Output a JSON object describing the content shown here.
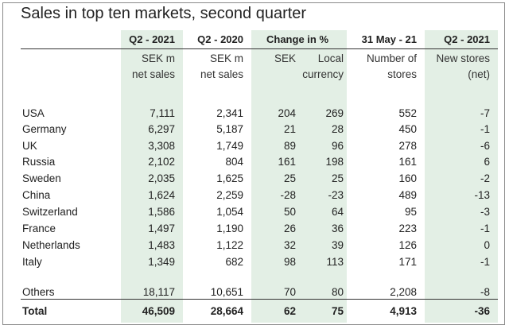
{
  "title": "Sales in top ten markets, second quarter",
  "col_headers": [
    "Q2 - 2021",
    "Q2 - 2020",
    "Change in %",
    "31 May - 21",
    "Q2 - 2021"
  ],
  "sub_headers": {
    "line1": [
      "SEK m",
      "SEK m",
      "SEK",
      "Local",
      "Number of",
      "New stores"
    ],
    "line2": [
      "net sales",
      "net sales",
      "",
      "currency",
      "stores",
      "(net)"
    ]
  },
  "rows": [
    {
      "market": "USA",
      "cells": [
        "7,111",
        "2,341",
        "204",
        "269",
        "552",
        "-7"
      ]
    },
    {
      "market": "Germany",
      "cells": [
        "6,297",
        "5,187",
        "21",
        "28",
        "450",
        "-1"
      ]
    },
    {
      "market": "UK",
      "cells": [
        "3,308",
        "1,749",
        "89",
        "96",
        "278",
        "-6"
      ]
    },
    {
      "market": "Russia",
      "cells": [
        "2,102",
        "804",
        "161",
        "198",
        "161",
        "6"
      ]
    },
    {
      "market": "Sweden",
      "cells": [
        "2,035",
        "1,625",
        "25",
        "25",
        "160",
        "-2"
      ]
    },
    {
      "market": "China",
      "cells": [
        "1,624",
        "2,259",
        "-28",
        "-23",
        "489",
        "-13"
      ]
    },
    {
      "market": "Switzerland",
      "cells": [
        "1,586",
        "1,054",
        "50",
        "64",
        "95",
        "-3"
      ]
    },
    {
      "market": "France",
      "cells": [
        "1,497",
        "1,190",
        "26",
        "36",
        "223",
        "-1"
      ]
    },
    {
      "market": "Netherlands",
      "cells": [
        "1,483",
        "1,122",
        "32",
        "39",
        "126",
        "0"
      ]
    },
    {
      "market": "Italy",
      "cells": [
        "1,349",
        "682",
        "98",
        "113",
        "171",
        "-1"
      ]
    }
  ],
  "others": {
    "market": "Others",
    "cells": [
      "18,117",
      "10,651",
      "70",
      "80",
      "2,208",
      "-8"
    ]
  },
  "total": {
    "market": "Total",
    "cells": [
      "46,509",
      "28,664",
      "62",
      "75",
      "4,913",
      "-36"
    ]
  },
  "colors": {
    "band": "#e3efe5",
    "rule": "#333333"
  }
}
